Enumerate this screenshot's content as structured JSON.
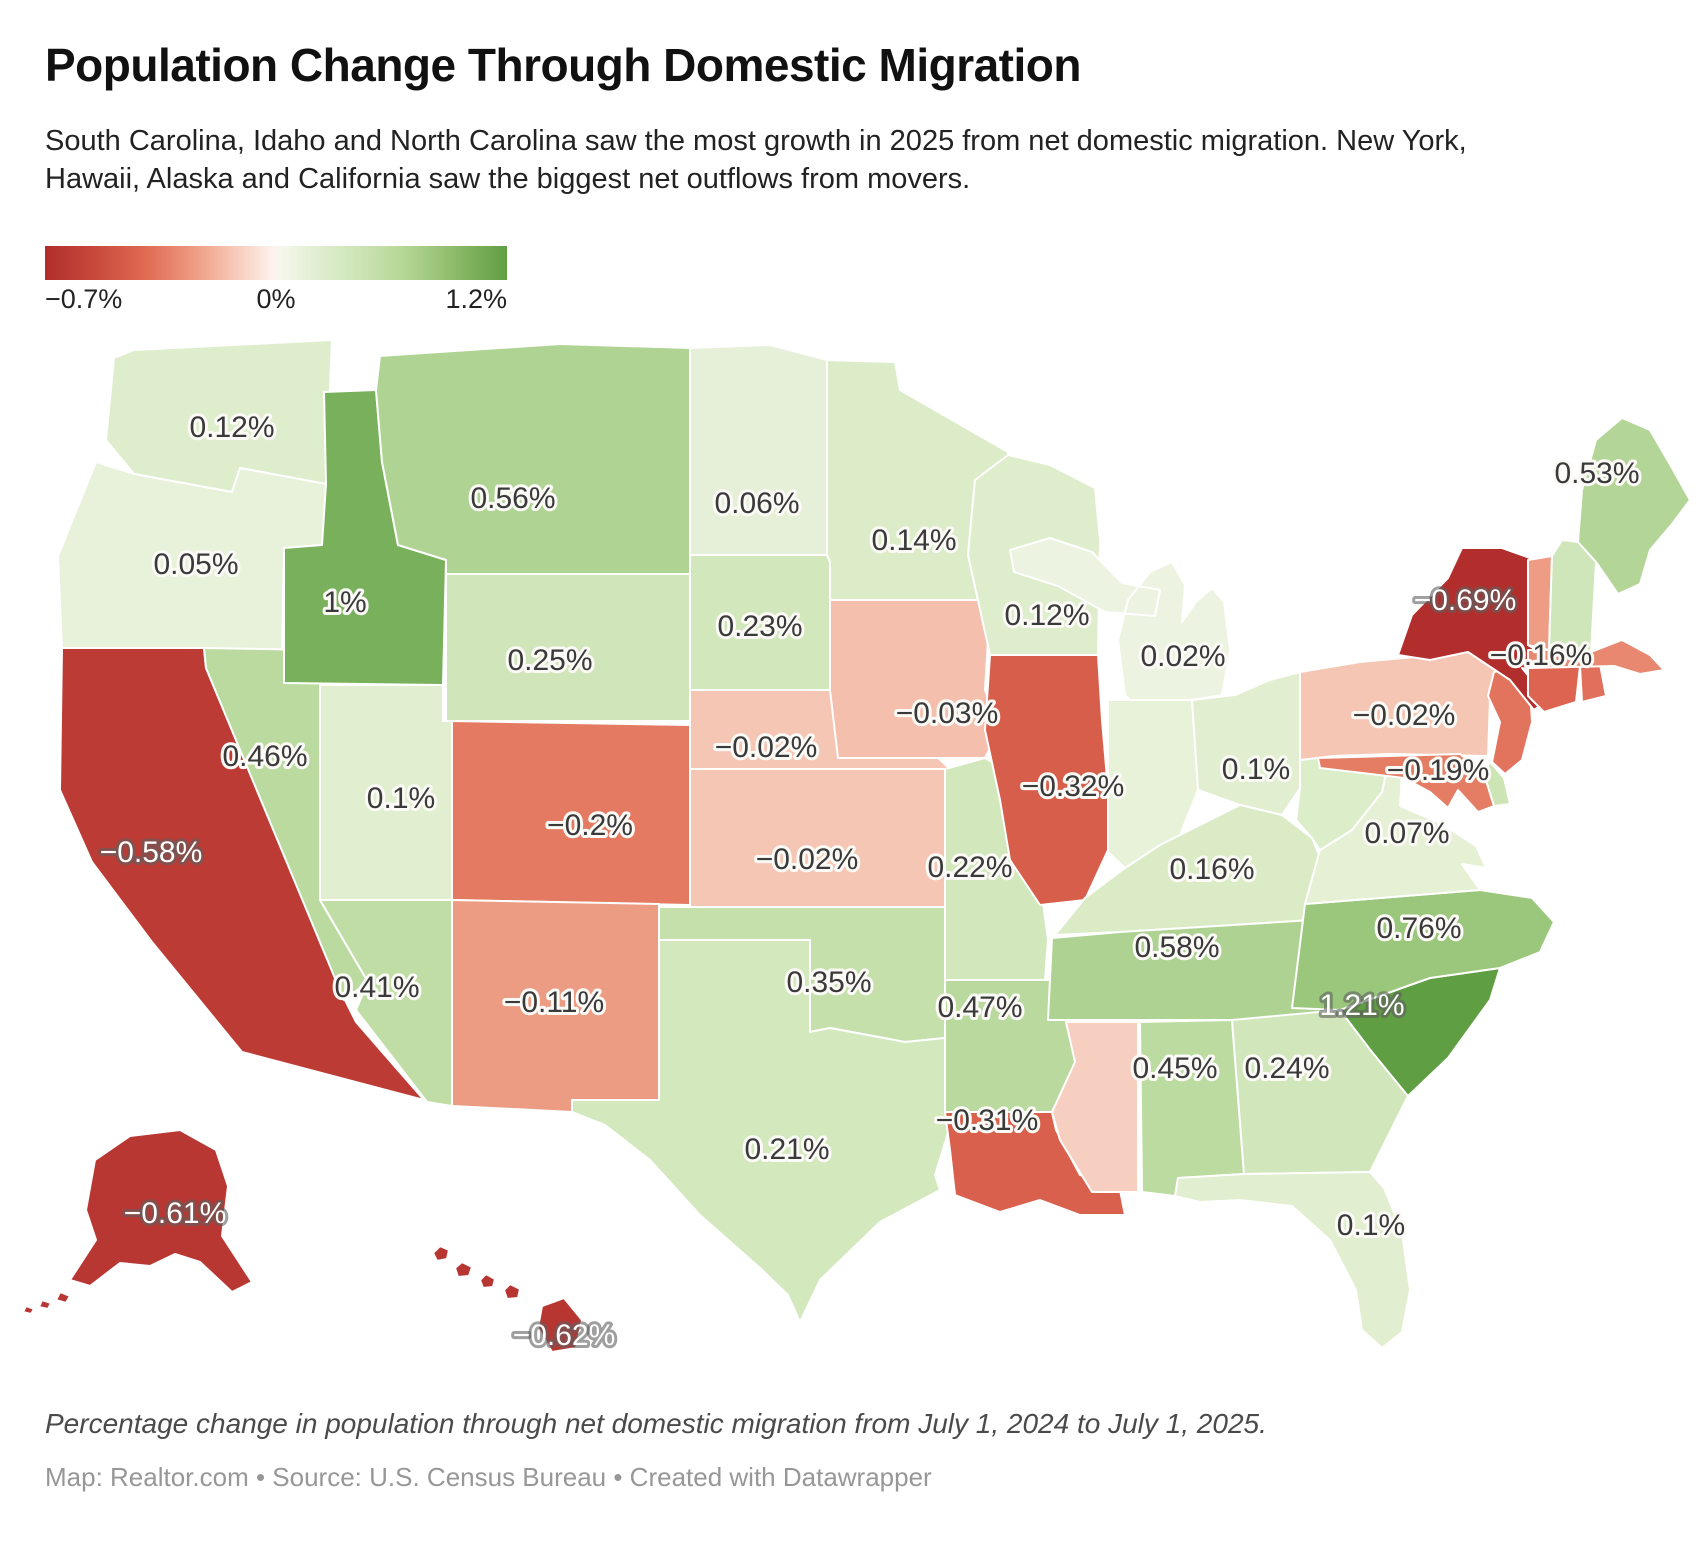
{
  "header": {
    "title": "Population Change Through Domestic Migration",
    "subtitle": "South Carolina, Idaho and North Carolina saw the most growth in 2025 from net domestic migration. New York, Hawaii, Alaska and California saw the biggest net outflows from movers."
  },
  "legend": {
    "min_label": "−0.7%",
    "mid_label": "0%",
    "max_label": "1.2%"
  },
  "footer": {
    "note": "Percentage change in population through net domestic migration from July 1, 2024 to July 1, 2025.",
    "credit": "Map: Realtor.com • Source: U.S. Census Bureau • Created with Datawrapper"
  },
  "chart_data": {
    "type": "choropleth",
    "title": "Population Change Through Domestic Migration",
    "unit": "%",
    "color_scale": {
      "domain": [
        -0.7,
        0,
        1.2
      ],
      "colors": [
        "#b12d2c",
        "#fdfdfa",
        "#5f9e42"
      ],
      "legend_labels": [
        "−0.7%",
        "0%",
        "1.2%"
      ]
    },
    "states": [
      {
        "id": "WA",
        "name": "Washington",
        "value": 0.12,
        "label": "0.12%"
      },
      {
        "id": "OR",
        "name": "Oregon",
        "value": 0.05,
        "label": "0.05%"
      },
      {
        "id": "CA",
        "name": "California",
        "value": -0.58,
        "label": "−0.58%"
      },
      {
        "id": "NV",
        "name": "Nevada",
        "value": 0.46,
        "label": "0.46%"
      },
      {
        "id": "ID",
        "name": "Idaho",
        "value": 1.0,
        "label": "1%"
      },
      {
        "id": "UT",
        "name": "Utah",
        "value": 0.1,
        "label": "0.1%"
      },
      {
        "id": "AZ",
        "name": "Arizona",
        "value": 0.41,
        "label": "0.41%"
      },
      {
        "id": "MT",
        "name": "Montana",
        "value": 0.56,
        "label": "0.56%"
      },
      {
        "id": "WY",
        "name": "Wyoming",
        "value": 0.25,
        "label": "0.25%"
      },
      {
        "id": "CO",
        "name": "Colorado",
        "value": -0.2,
        "label": "−0.2%"
      },
      {
        "id": "NM",
        "name": "New Mexico",
        "value": -0.11,
        "label": "−0.11%"
      },
      {
        "id": "ND",
        "name": "North Dakota",
        "value": 0.06,
        "label": "0.06%"
      },
      {
        "id": "SD",
        "name": "South Dakota",
        "value": 0.23,
        "label": "0.23%"
      },
      {
        "id": "NE",
        "name": "Nebraska",
        "value": -0.02,
        "label": "−0.02%"
      },
      {
        "id": "KS",
        "name": "Kansas",
        "value": -0.02,
        "label": "−0.02%"
      },
      {
        "id": "OK",
        "name": "Oklahoma",
        "value": 0.35,
        "label": "0.35%"
      },
      {
        "id": "TX",
        "name": "Texas",
        "value": 0.21,
        "label": "0.21%"
      },
      {
        "id": "MN",
        "name": "Minnesota",
        "value": 0.14,
        "label": "0.14%"
      },
      {
        "id": "IA",
        "name": "Iowa",
        "value": -0.03,
        "label": "−0.03%"
      },
      {
        "id": "MO",
        "name": "Missouri",
        "value": 0.22,
        "label": "0.22%"
      },
      {
        "id": "AR",
        "name": "Arkansas",
        "value": 0.47,
        "label": "0.47%"
      },
      {
        "id": "LA",
        "name": "Louisiana",
        "value": -0.31,
        "label": "−0.31%"
      },
      {
        "id": "WI",
        "name": "Wisconsin",
        "value": 0.12,
        "label": "0.12%"
      },
      {
        "id": "IL",
        "name": "Illinois",
        "value": -0.32,
        "label": "−0.32%"
      },
      {
        "id": "MI",
        "name": "Michigan",
        "value": 0.02,
        "label": "0.02%"
      },
      {
        "id": "IN",
        "name": "Indiana",
        "label": null,
        "fill": "#e7f2d8"
      },
      {
        "id": "OH",
        "name": "Ohio",
        "value": 0.1,
        "label": "0.1%"
      },
      {
        "id": "KY",
        "name": "Kentucky",
        "value": 0.16,
        "label": "0.16%"
      },
      {
        "id": "TN",
        "name": "Tennessee",
        "value": 0.58,
        "label": "0.58%"
      },
      {
        "id": "MS",
        "name": "Mississippi",
        "label": null,
        "fill": "#f7cfc0"
      },
      {
        "id": "AL",
        "name": "Alabama",
        "value": 0.45,
        "label": "0.45%"
      },
      {
        "id": "GA",
        "name": "Georgia",
        "value": 0.24,
        "label": "0.24%"
      },
      {
        "id": "FL",
        "name": "Florida",
        "value": 0.1,
        "label": "0.1%"
      },
      {
        "id": "SC",
        "name": "South Carolina",
        "value": 1.21,
        "label": "1.21%"
      },
      {
        "id": "NC",
        "name": "North Carolina",
        "value": 0.76,
        "label": "0.76%"
      },
      {
        "id": "VA",
        "name": "Virginia",
        "value": 0.07,
        "label": "0.07%"
      },
      {
        "id": "WV",
        "name": "West Virginia",
        "label": null,
        "fill": "#dcedca"
      },
      {
        "id": "PA",
        "name": "Pennsylvania",
        "value": -0.02,
        "label": "−0.02%"
      },
      {
        "id": "MD",
        "name": "Maryland",
        "value": -0.19,
        "label": "−0.19%"
      },
      {
        "id": "DE",
        "name": "Delaware",
        "label": null,
        "fill": "#cde4b4"
      },
      {
        "id": "NJ",
        "name": "New Jersey",
        "label": null,
        "fill": "#e2735d"
      },
      {
        "id": "NY",
        "name": "New York",
        "value": -0.69,
        "label": "−0.69%"
      },
      {
        "id": "CT",
        "name": "Connecticut",
        "label": null,
        "fill": "#dd6450"
      },
      {
        "id": "RI",
        "name": "Rhode Island",
        "label": null,
        "fill": "#e0705c"
      },
      {
        "id": "MA",
        "name": "Massachusetts",
        "value": -0.16,
        "label": "−0.16%"
      },
      {
        "id": "VT",
        "name": "Vermont",
        "label": null,
        "fill": "#ef9c85"
      },
      {
        "id": "NH",
        "name": "New Hampshire",
        "label": null,
        "fill": "#cfe5ba"
      },
      {
        "id": "ME",
        "name": "Maine",
        "value": 0.53,
        "label": "0.53%"
      },
      {
        "id": "AK",
        "name": "Alaska",
        "value": -0.61,
        "label": "−0.61%"
      },
      {
        "id": "HI",
        "name": "Hawaii",
        "value": -0.62,
        "label": "−0.62%"
      }
    ]
  }
}
